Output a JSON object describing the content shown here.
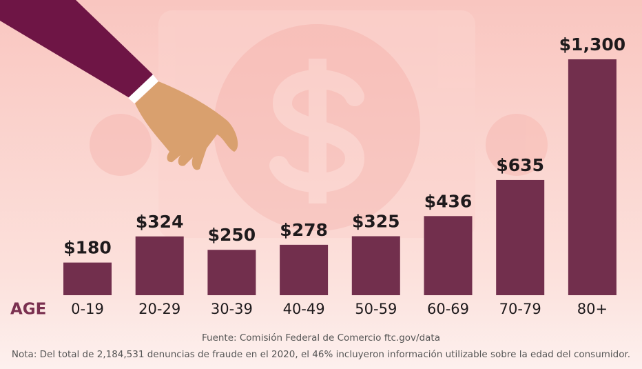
{
  "chart_data": {
    "type": "bar",
    "axis_label": "AGE",
    "categories": [
      "0-19",
      "20-29",
      "30-39",
      "40-49",
      "50-59",
      "60-69",
      "70-79",
      "80+"
    ],
    "values": [
      180,
      324,
      250,
      278,
      325,
      436,
      635,
      1300
    ],
    "value_labels": [
      "$180",
      "$324",
      "$250",
      "$278",
      "$325",
      "$436",
      "$635",
      "$1,300"
    ],
    "color": "#722f4d",
    "ylim": [
      0,
      1300
    ],
    "source": "Fuente: Comisión Federal de Comercio ftc.gov/data",
    "note": "Nota: Del total de 2,184,531 denuncias de fraude en el 2020, el 46% incluyeron información utilizable sobre la edad del consumidor."
  }
}
